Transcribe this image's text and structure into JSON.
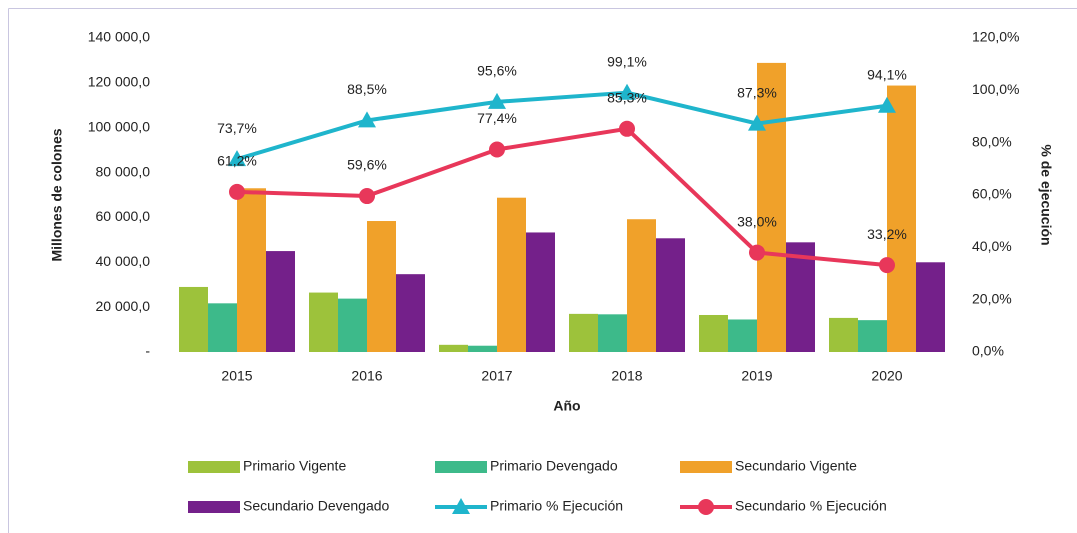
{
  "chart_data": {
    "type": "bar-line",
    "categories": [
      "2015",
      "2016",
      "2017",
      "2018",
      "2019",
      "2020"
    ],
    "xlabel": "Año",
    "ylabel": "Millones de colones",
    "y2label": "% de ejecución",
    "ylim": [
      0,
      140000
    ],
    "yticks": [
      {
        "value": 0,
        "label": "-"
      },
      {
        "value": 20000,
        "label": "20 000,0"
      },
      {
        "value": 40000,
        "label": "40 000,0"
      },
      {
        "value": 60000,
        "label": "60 000,0"
      },
      {
        "value": 80000,
        "label": "80 000,0"
      },
      {
        "value": 100000,
        "label": "100 000,0"
      },
      {
        "value": 120000,
        "label": "120 000,0"
      },
      {
        "value": 140000,
        "label": "140 000,0"
      }
    ],
    "y2lim": [
      0,
      120
    ],
    "y2ticks": [
      {
        "value": 0,
        "label": "0,0%"
      },
      {
        "value": 20,
        "label": "20,0%"
      },
      {
        "value": 40,
        "label": "40,0%"
      },
      {
        "value": 60,
        "label": "60,0%"
      },
      {
        "value": 80,
        "label": "80,0%"
      },
      {
        "value": 100,
        "label": "100,0%"
      },
      {
        "value": 120,
        "label": "120,0%"
      }
    ],
    "series": [
      {
        "name": "Primario Vigente",
        "type": "bar",
        "color": "#9dc23b",
        "values": [
          29000,
          26500,
          3200,
          17000,
          16500,
          15200
        ]
      },
      {
        "name": "Primario Devengado",
        "type": "bar",
        "color": "#3dba8a",
        "values": [
          21700,
          23800,
          2800,
          16800,
          14500,
          14200
        ]
      },
      {
        "name": "Secundario Vigente",
        "type": "bar",
        "color": "#f0a12a",
        "values": [
          73000,
          58400,
          68800,
          59200,
          128900,
          118800
        ]
      },
      {
        "name": "Secundario Devengado",
        "type": "bar",
        "color": "#74208a",
        "values": [
          45000,
          34700,
          53300,
          50700,
          48900,
          40000
        ]
      },
      {
        "name": "Primario % Ejecución",
        "type": "line",
        "marker": "triangle",
        "axis": "y2",
        "color": "#1fb5cc",
        "values": [
          73.7,
          88.5,
          95.6,
          99.1,
          87.3,
          94.1
        ],
        "value_labels": [
          "73,7%",
          "88,5%",
          "95,6%",
          "99,1%",
          "87,3%",
          "94,1%"
        ]
      },
      {
        "name": "Secundario % Ejecución",
        "type": "line",
        "marker": "circle",
        "axis": "y2",
        "color": "#e8375a",
        "values": [
          61.2,
          59.6,
          77.4,
          85.3,
          38.0,
          33.2
        ],
        "value_labels": [
          "61,2%",
          "59,6%",
          "77,4%",
          "85,3%",
          "38,0%",
          "33,2%"
        ]
      }
    ]
  }
}
